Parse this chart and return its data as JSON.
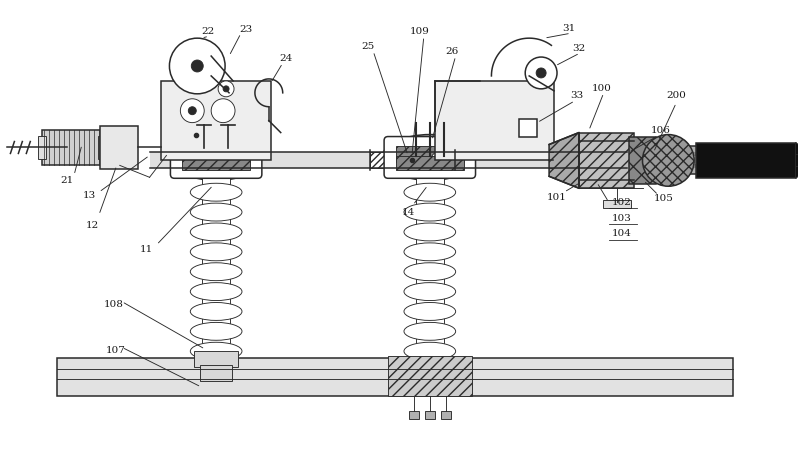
{
  "bg_color": "#ffffff",
  "line_color": "#2a2a2a",
  "fig_width": 8.0,
  "fig_height": 4.5,
  "dpi": 100,
  "label_color": "#1a1a1a",
  "label_fs": 7.5,
  "lw_main": 1.1,
  "lw_thin": 0.65,
  "lw_med": 0.9
}
